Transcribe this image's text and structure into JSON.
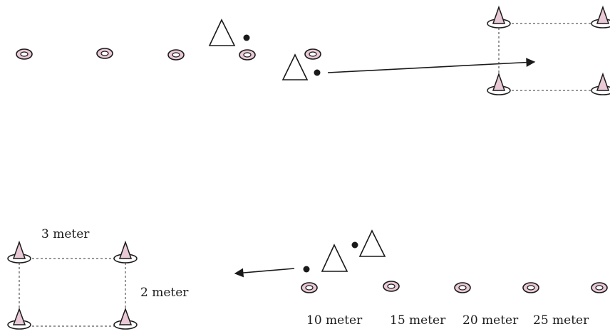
{
  "labels": {
    "width_label": "3 meter",
    "height_label": "2 meter",
    "distance_labels": [
      "10 meter",
      "15 meter",
      "20 meter",
      "25 meter"
    ]
  },
  "icons": {
    "cone": "cone-icon",
    "disc_marker": "disc-marker-icon",
    "player": "player-triangle-icon",
    "ball": "ball-icon",
    "arrow": "arrow-icon"
  },
  "colors": {
    "ink": "#1a1a1a",
    "marker_fill": "#e9c9d6",
    "cone_fill": "#ffffff",
    "dash": "#333333"
  }
}
